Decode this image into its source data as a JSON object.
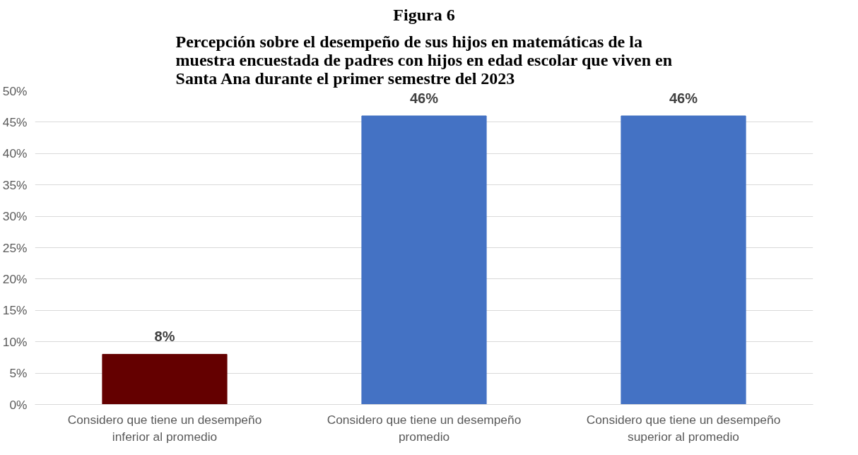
{
  "chart_data": {
    "type": "bar",
    "title": "Figura 6",
    "subtitle": "Percepción sobre el desempeño de sus hijos en matemáticas de la muestra encuestada de padres con hijos en edad escolar que viven en Santa Ana durante el primer semestre del 2023",
    "categories": [
      "Considero que tiene un desempeño inferior al promedio",
      "Considero que tiene un desempeño promedio",
      "Considero que tiene un desempeño superior al promedio"
    ],
    "values": [
      8,
      46,
      46
    ],
    "colors": [
      "#640000",
      "#4472c4",
      "#4472c4"
    ],
    "value_labels": [
      "8%",
      "46%",
      "46%"
    ],
    "ylim": [
      0,
      50
    ],
    "yticks": [
      {
        "value": 0,
        "label": "0%"
      },
      {
        "value": 5,
        "label": "5%"
      },
      {
        "value": 10,
        "label": "10%"
      },
      {
        "value": 15,
        "label": "15%"
      },
      {
        "value": 20,
        "label": "20%"
      },
      {
        "value": 25,
        "label": "25%"
      },
      {
        "value": 30,
        "label": "30%"
      },
      {
        "value": 35,
        "label": "35%"
      },
      {
        "value": 40,
        "label": "40%"
      },
      {
        "value": 45,
        "label": "45%"
      },
      {
        "value": 50,
        "label": "50%"
      }
    ],
    "grid": "y"
  }
}
